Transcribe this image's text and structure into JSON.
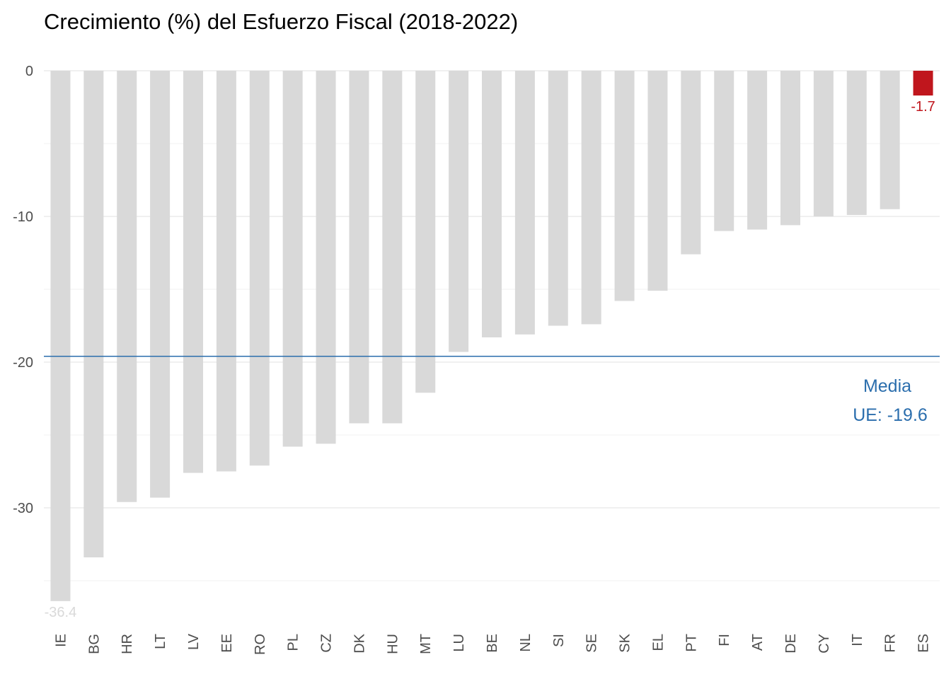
{
  "chart_data": {
    "type": "bar",
    "title": "Crecimiento (%) del Esfuerzo Fiscal (2018-2022)",
    "xlabel": "",
    "ylabel": "",
    "ylim": [
      -38.5,
      0.6
    ],
    "yticks": [
      0,
      -10,
      -20,
      -30
    ],
    "ytick_labels": [
      "0",
      "-10",
      "-20",
      "-30"
    ],
    "minor_grid": [
      -5,
      -15,
      -25,
      -35
    ],
    "grid": true,
    "legend": "none",
    "categories": [
      "IE",
      "BG",
      "HR",
      "LT",
      "LV",
      "EE",
      "RO",
      "PL",
      "CZ",
      "DK",
      "HU",
      "MT",
      "LU",
      "BE",
      "NL",
      "SI",
      "SE",
      "SK",
      "EL",
      "PT",
      "FI",
      "AT",
      "DE",
      "CY",
      "IT",
      "FR",
      "ES"
    ],
    "values": [
      -36.4,
      -33.4,
      -29.6,
      -29.3,
      -27.6,
      -27.5,
      -27.1,
      -25.8,
      -25.6,
      -24.2,
      -24.2,
      -22.1,
      -19.3,
      -18.3,
      -18.1,
      -17.5,
      -17.4,
      -15.8,
      -15.1,
      -12.6,
      -11.0,
      -10.9,
      -10.6,
      -10.0,
      -9.9,
      -9.5,
      -1.7
    ],
    "data_labels": [
      {
        "category": "IE",
        "text": "-36.4",
        "color": "#d9d9d9"
      },
      {
        "category": "ES",
        "text": "-1.7",
        "color": "#c0161d"
      }
    ],
    "reference_line": {
      "value": -19.6,
      "label_line1": "Media",
      "label_line2": "UE: -19.6",
      "color": "#2b6ead"
    },
    "colors": {
      "default_bar": "#d9d9d9",
      "highlight_bar": "#c0161d",
      "highlight_category": "ES"
    }
  }
}
